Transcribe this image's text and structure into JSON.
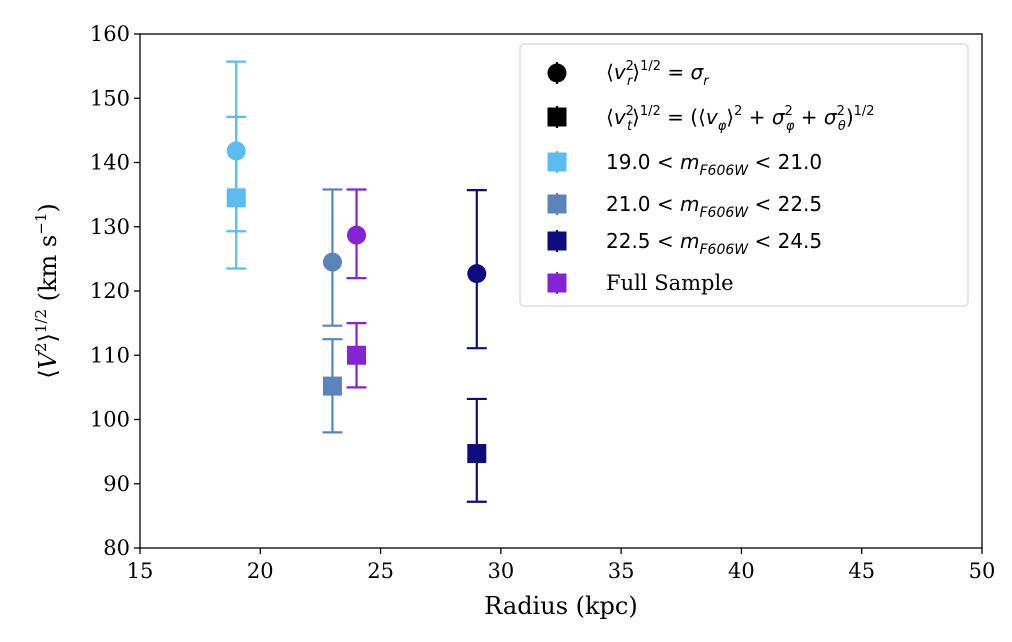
{
  "chart_data": {
    "type": "scatter",
    "title": "",
    "xlabel": "Radius (kpc)",
    "ylabel": "⟨V²⟩^1/2 (km s⁻¹)",
    "xlim": [
      15,
      50
    ],
    "ylim": [
      80,
      160
    ],
    "xticks": [
      15,
      20,
      25,
      30,
      35,
      40,
      45,
      50
    ],
    "yticks": [
      80,
      90,
      100,
      110,
      120,
      130,
      140,
      150,
      160
    ],
    "grid": false,
    "legend_position": "top-right",
    "marker_legend": [
      {
        "marker": "circle",
        "label": "⟨v_r²⟩^1/2 = σ_r"
      },
      {
        "marker": "square",
        "label": "⟨v_t²⟩^1/2 = (⟨v_φ⟩² + σ_φ² + σ_θ²)^1/2"
      }
    ],
    "series": [
      {
        "name": "19.0 < m_F606W < 21.0",
        "color": "#5bbcf0",
        "points": [
          {
            "x": 19,
            "y": 141.8,
            "err_low": 12.5,
            "err_high": 5.3,
            "marker": "circle"
          },
          {
            "x": 19,
            "y": 134.5,
            "err_low": 11.0,
            "err_high": 21.2,
            "marker": "square"
          }
        ]
      },
      {
        "name": "21.0 < m_F606W < 22.5",
        "color": "#5b84b8",
        "points": [
          {
            "x": 23,
            "y": 124.5,
            "err_low": 9.9,
            "err_high": 11.3,
            "marker": "circle"
          },
          {
            "x": 23,
            "y": 105.2,
            "err_low": 7.2,
            "err_high": 7.3,
            "marker": "square"
          }
        ]
      },
      {
        "name": "22.5 < m_F606W < 24.5",
        "color": "#0d0d7e",
        "points": [
          {
            "x": 29,
            "y": 122.7,
            "err_low": 11.6,
            "err_high": 13.0,
            "marker": "circle"
          },
          {
            "x": 29,
            "y": 94.7,
            "err_low": 7.5,
            "err_high": 8.5,
            "marker": "square"
          }
        ]
      },
      {
        "name": "Full Sample",
        "color": "#8524d4",
        "points": [
          {
            "x": 24,
            "y": 128.7,
            "err_low": 6.7,
            "err_high": 7.1,
            "marker": "circle"
          },
          {
            "x": 24,
            "y": 110.0,
            "err_low": 5.0,
            "err_high": 5.0,
            "marker": "square"
          }
        ]
      }
    ]
  }
}
